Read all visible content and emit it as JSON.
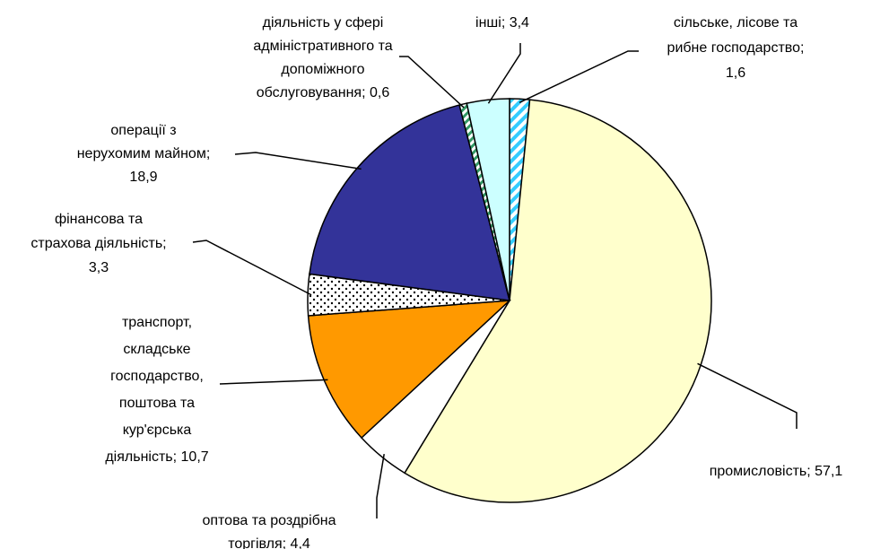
{
  "chart_data": {
    "type": "pie",
    "values": [
      1.6,
      57.1,
      4.4,
      10.7,
      3.3,
      18.9,
      0.6,
      3.4
    ],
    "value_labels": [
      [
        "сільське, лісове та",
        "рибне господарство;",
        "1,6"
      ],
      [
        "промисловість; 57,1"
      ],
      [
        "оптова та роздрібна",
        "торгівля; 4,4"
      ],
      [
        "транспорт,",
        "складське",
        "господарство,",
        "поштова та",
        "кур'єрська",
        "діяльність; 10,7"
      ],
      [
        "фінансова та",
        "страхова діяльність;",
        "3,3"
      ],
      [
        "операції з",
        "нерухомим майном;",
        "18,9"
      ],
      [
        "діяльність у сфері",
        "адміністративного та",
        "допоміжного",
        "обслуговування; 0,6"
      ],
      [
        "інші; 3,4"
      ]
    ],
    "colors": [
      "#33ccff",
      "#ffffcc",
      "#ffffff",
      "#ff9900",
      "#ffffff",
      "#333399",
      "#339966",
      "#ccffff"
    ],
    "patterns": [
      "stripes",
      null,
      null,
      null,
      "dots",
      null,
      "stripes",
      null
    ]
  }
}
